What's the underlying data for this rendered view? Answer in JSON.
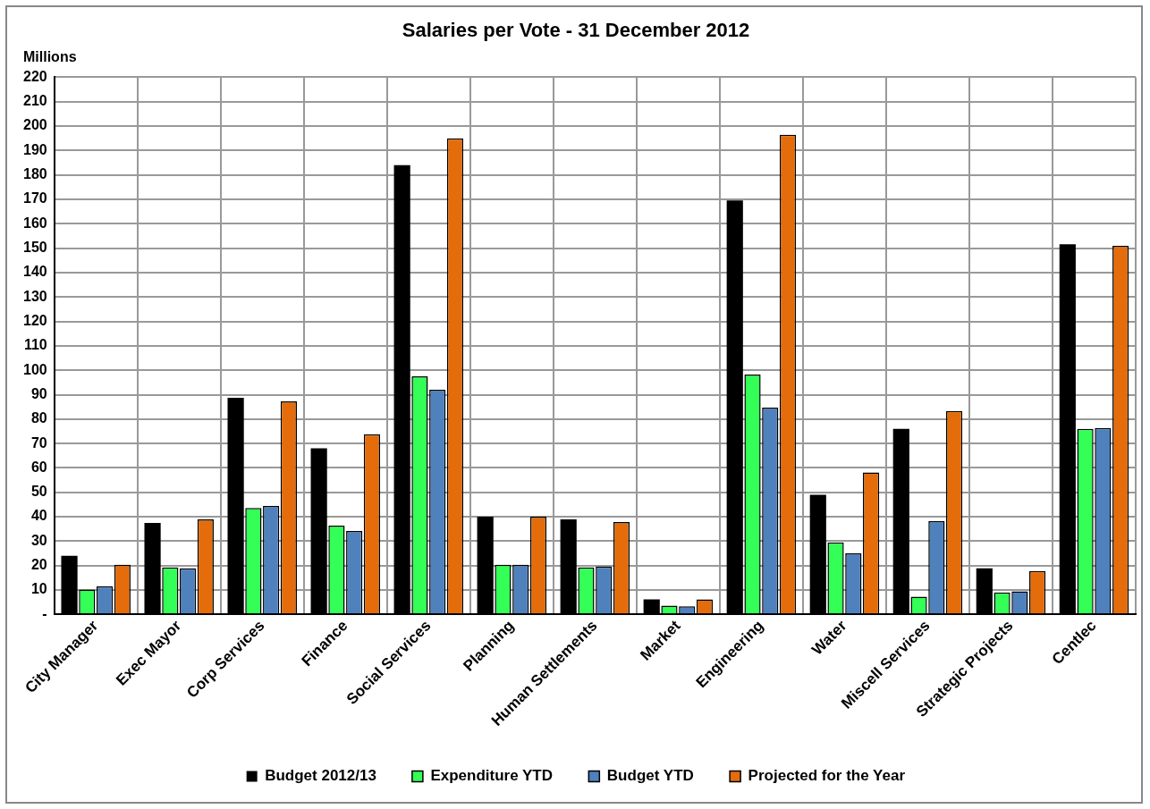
{
  "chart_data": {
    "type": "bar",
    "title": "Salaries per Vote - 31 December 2012",
    "ylabel": "Millions",
    "categories": [
      "City Manager",
      "Exec Mayor",
      "Corp Services",
      "Finance",
      "Social Services",
      "Planning",
      "Human Settlements",
      "Market",
      "Engineering",
      "Water",
      "Miscell Services",
      "Strategic Projects",
      "Centlec"
    ],
    "series": [
      {
        "name": "Budget 2012/13",
        "color": "#000000",
        "values": [
          24,
          37.5,
          88.7,
          68,
          184,
          40,
          38.9,
          6.2,
          169.5,
          49,
          76,
          18.9,
          151.6
        ]
      },
      {
        "name": "Expenditure YTD",
        "color": "#33ff57",
        "values": [
          10.2,
          19.3,
          43.6,
          36.4,
          97.5,
          20.4,
          19.3,
          3.6,
          98.2,
          29.5,
          7.3,
          9,
          76
        ]
      },
      {
        "name": "Budget YTD",
        "color": "#4f81bd",
        "values": [
          11.6,
          18.9,
          44.4,
          34.2,
          92,
          20.4,
          19.6,
          3.3,
          84.7,
          25,
          38.2,
          9.5,
          76.4
        ]
      },
      {
        "name": "Projected for the Year",
        "color": "#e46c0a",
        "values": [
          20.4,
          38.9,
          87.3,
          73.8,
          195,
          40,
          37.8,
          6.2,
          196.4,
          58.2,
          83.3,
          17.8,
          151
        ]
      }
    ],
    "ylim": [
      0,
      220
    ],
    "yticks": [
      {
        "value": 0,
        "label": "-"
      },
      10,
      20,
      30,
      40,
      50,
      60,
      70,
      80,
      90,
      100,
      110,
      120,
      130,
      140,
      150,
      160,
      170,
      180,
      190,
      200,
      210,
      220
    ],
    "grid": true,
    "legend": "bottom"
  }
}
